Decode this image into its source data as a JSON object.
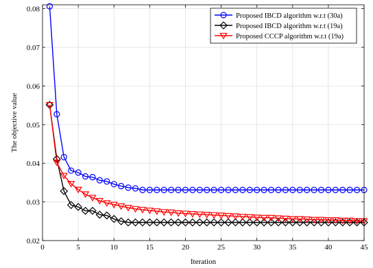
{
  "chart_data": {
    "type": "line",
    "title": "",
    "xlabel": "Iteration",
    "ylabel": "The objective value",
    "xlim": [
      0,
      45
    ],
    "ylim": [
      0.02,
      0.081
    ],
    "xticks": [
      0,
      5,
      10,
      15,
      20,
      25,
      30,
      35,
      40,
      45
    ],
    "xtick_labels": [
      "0",
      "5",
      "10",
      "15",
      "20",
      "25",
      "30",
      "35",
      "40",
      "45"
    ],
    "yticks": [
      0.02,
      0.03,
      0.04,
      0.05,
      0.06,
      0.07,
      0.08
    ],
    "ytick_labels": [
      "0.02",
      "0.03",
      "0.04",
      "0.05",
      "0.06",
      "0.07",
      "0.08"
    ],
    "grid": true,
    "legend_position": "top-right",
    "series": [
      {
        "name": "Proposed IBCD algorithm w.r.t (30a)",
        "color": "#0000ff",
        "marker": "circle",
        "x": [
          1,
          2,
          3,
          4,
          5,
          6,
          7,
          8,
          9,
          10,
          11,
          12,
          13,
          14,
          15,
          16,
          17,
          18,
          19,
          20,
          21,
          22,
          23,
          24,
          25,
          26,
          27,
          28,
          29,
          30,
          31,
          32,
          33,
          34,
          35,
          36,
          37,
          38,
          39,
          40,
          41,
          42,
          43,
          44,
          45
        ],
        "values": [
          0.0806,
          0.0527,
          0.0416,
          0.0381,
          0.0376,
          0.0366,
          0.0364,
          0.0356,
          0.0353,
          0.0346,
          0.0341,
          0.0337,
          0.0335,
          0.0331,
          0.0331,
          0.0331,
          0.0331,
          0.0331,
          0.0331,
          0.0331,
          0.0331,
          0.0331,
          0.0331,
          0.0331,
          0.0331,
          0.0331,
          0.0331,
          0.0331,
          0.0331,
          0.0331,
          0.0331,
          0.0331,
          0.0331,
          0.0331,
          0.0331,
          0.0331,
          0.0331,
          0.0331,
          0.0331,
          0.0331,
          0.0331,
          0.0331,
          0.0331,
          0.0331,
          0.0331
        ]
      },
      {
        "name": "Proposed IBCD algorithm w.r.t (19a)",
        "color": "#000000",
        "marker": "diamond",
        "x": [
          1,
          2,
          3,
          4,
          5,
          6,
          7,
          8,
          9,
          10,
          11,
          12,
          13,
          14,
          15,
          16,
          17,
          18,
          19,
          20,
          21,
          22,
          23,
          24,
          25,
          26,
          27,
          28,
          29,
          30,
          31,
          32,
          33,
          34,
          35,
          36,
          37,
          38,
          39,
          40,
          41,
          42,
          43,
          44,
          45
        ],
        "values": [
          0.0551,
          0.0411,
          0.0328,
          0.0292,
          0.0287,
          0.0277,
          0.0277,
          0.0267,
          0.0265,
          0.0256,
          0.025,
          0.0247,
          0.0247,
          0.0247,
          0.0247,
          0.0247,
          0.0247,
          0.0247,
          0.0247,
          0.0247,
          0.0247,
          0.0247,
          0.0247,
          0.0247,
          0.0247,
          0.0247,
          0.0247,
          0.0247,
          0.0247,
          0.0247,
          0.0247,
          0.0247,
          0.0247,
          0.0247,
          0.0247,
          0.0247,
          0.0247,
          0.0247,
          0.0247,
          0.0247,
          0.0247,
          0.0247,
          0.0247,
          0.0247,
          0.0247
        ]
      },
      {
        "name": "Proposed CCCP algorithm w.r.t (19a)",
        "color": "#ff0000",
        "marker": "triangle-down",
        "x": [
          1,
          2,
          3,
          4,
          5,
          6,
          7,
          8,
          9,
          10,
          11,
          12,
          13,
          14,
          15,
          16,
          17,
          18,
          19,
          20,
          21,
          22,
          23,
          24,
          25,
          26,
          27,
          28,
          29,
          30,
          31,
          32,
          33,
          34,
          35,
          36,
          37,
          38,
          39,
          40,
          41,
          42,
          43,
          44,
          45
        ],
        "values": [
          0.0551,
          0.0402,
          0.0368,
          0.0347,
          0.0332,
          0.032,
          0.0311,
          0.0303,
          0.0297,
          0.0293,
          0.0289,
          0.0285,
          0.0282,
          0.028,
          0.0278,
          0.0276,
          0.0274,
          0.0273,
          0.0271,
          0.027,
          0.0269,
          0.0268,
          0.0267,
          0.0266,
          0.0265,
          0.0264,
          0.0263,
          0.0262,
          0.0261,
          0.026,
          0.0259,
          0.0259,
          0.0258,
          0.0257,
          0.0256,
          0.0256,
          0.0255,
          0.0254,
          0.0254,
          0.0253,
          0.0253,
          0.0252,
          0.0252,
          0.0251,
          0.0251
        ]
      }
    ]
  }
}
